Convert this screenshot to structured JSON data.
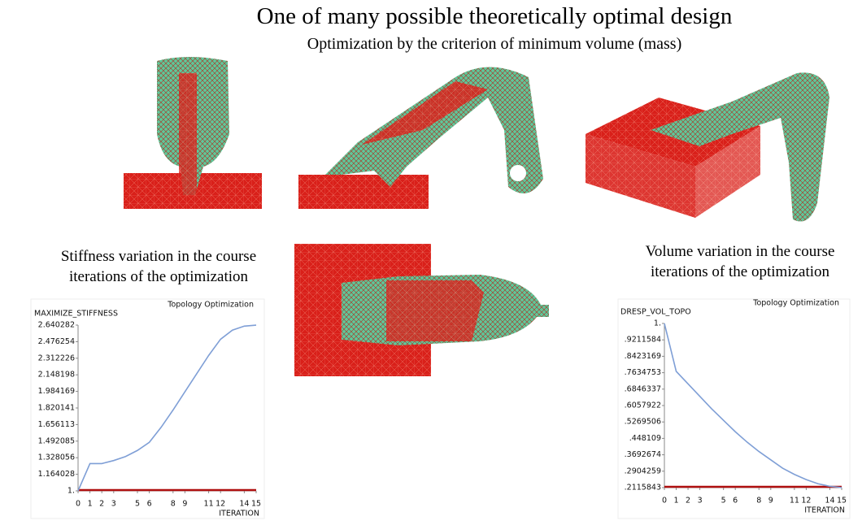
{
  "title": "One of many possible theoretically optimal design",
  "subtitle": "Optimization by the criterion of minimum volume (mass)",
  "captions": [
    [
      "Stiffness variation in the course",
      "iterations of the optimization"
    ],
    [
      "Volume variation in the course",
      "iterations of the optimization"
    ]
  ],
  "chart_data": [
    {
      "type": "line",
      "title": "Topology Optimization",
      "y_label": "MAXIMIZE_STIFFNESS",
      "x_label": "ITERATION",
      "x": [
        0,
        1,
        2,
        3,
        4,
        5,
        6,
        7,
        8,
        9,
        10,
        11,
        12,
        13,
        14,
        15
      ],
      "values": [
        1.0,
        1.27,
        1.27,
        1.3,
        1.34,
        1.4,
        1.48,
        1.63,
        1.8,
        1.98,
        2.16,
        2.34,
        2.5,
        2.59,
        2.63,
        2.64
      ],
      "color": "#7f9fd6",
      "xlim": [
        0,
        15
      ],
      "xticks": [
        0,
        1,
        2,
        3,
        5,
        6,
        8,
        9,
        11,
        12,
        14,
        15
      ],
      "ylim": [
        1,
        2.640282
      ],
      "yticks": [
        {
          "value": 1,
          "label": "1."
        },
        1.164028,
        1.328056,
        1.492085,
        1.656113,
        1.820141,
        1.984169,
        2.148198,
        2.312226,
        2.476254,
        2.640282
      ]
    },
    {
      "type": "line",
      "title": "Topology Optimization",
      "y_label": "DRESP_VOL_TOPO",
      "x_label": "ITERATION",
      "x": [
        0,
        1,
        2,
        3,
        4,
        5,
        6,
        7,
        8,
        9,
        10,
        11,
        12,
        13,
        14,
        15
      ],
      "values": [
        1.0,
        0.77,
        0.71,
        0.65,
        0.59,
        0.535,
        0.48,
        0.43,
        0.385,
        0.345,
        0.305,
        0.275,
        0.25,
        0.23,
        0.218,
        0.2116
      ],
      "color": "#7f9fd6",
      "xlim": [
        0,
        15
      ],
      "xticks": [
        0,
        1,
        2,
        3,
        5,
        6,
        8,
        9,
        11,
        12,
        14,
        15
      ],
      "ylim": [
        0.2115843,
        1
      ],
      "yticks": [
        {
          "value": 1,
          "label": "1."
        },
        {
          "value": 0.9211584,
          "label": ".9211584"
        },
        {
          "value": 0.8423169,
          "label": ".8423169"
        },
        {
          "value": 0.7634753,
          "label": ".7634753"
        },
        {
          "value": 0.6846337,
          "label": ".6846337"
        },
        {
          "value": 0.6057922,
          "label": ".6057922"
        },
        {
          "value": 0.5269506,
          "label": ".5269506"
        },
        {
          "value": 0.448109,
          "label": ".448109"
        },
        {
          "value": 0.3692674,
          "label": ".3692674"
        },
        {
          "value": 0.2904259,
          "label": ".2904259"
        },
        {
          "value": 0.2115843,
          "label": ".2115843"
        }
      ]
    }
  ]
}
